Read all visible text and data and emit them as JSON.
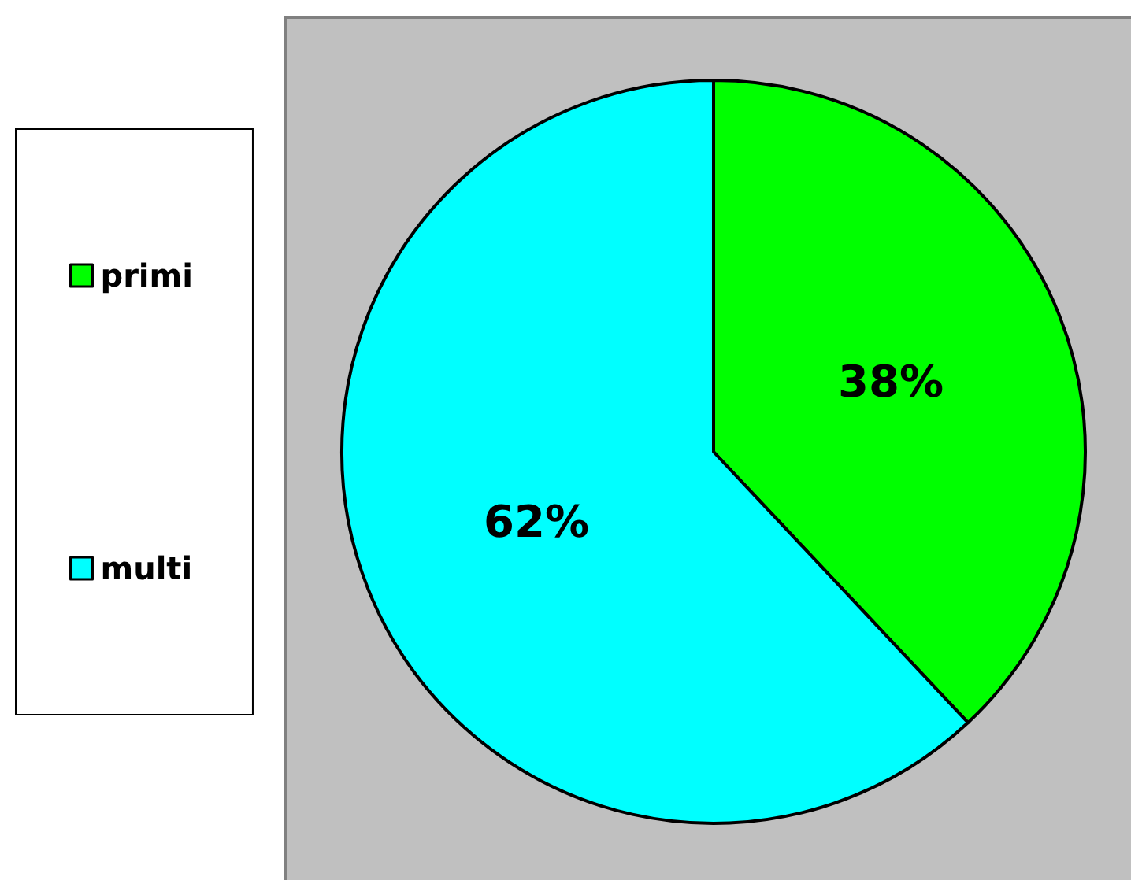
{
  "chart_data": {
    "type": "pie",
    "categories": [
      "primi",
      "multi"
    ],
    "values": [
      38,
      62
    ],
    "colors": [
      "#00ff00",
      "#00ffff"
    ],
    "value_labels": [
      "38%",
      "62%"
    ],
    "legend": "left"
  }
}
